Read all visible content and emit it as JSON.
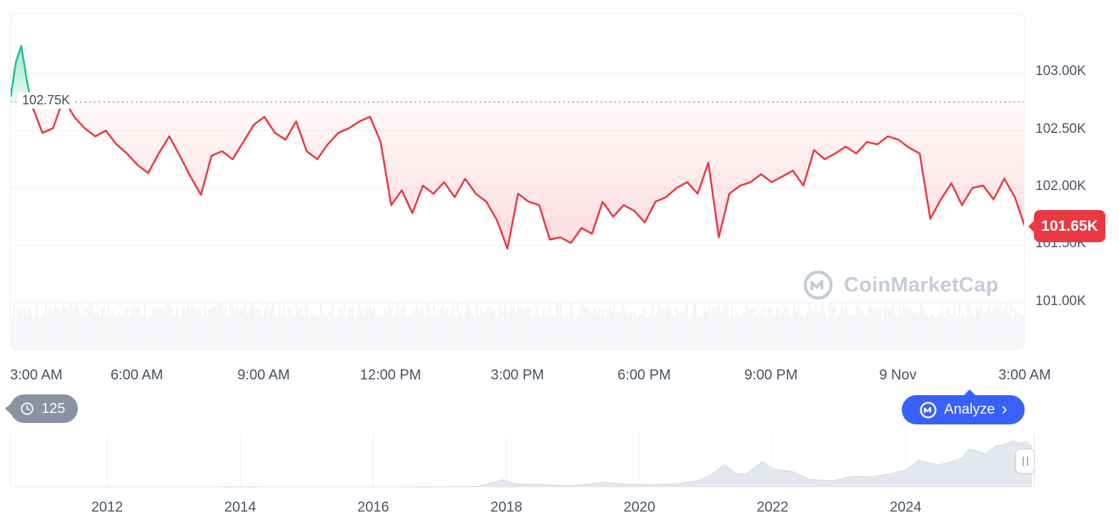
{
  "price_chart": {
    "reference_label": "102.75K",
    "last_price_label": "101.65K",
    "line_color": "#ea3943",
    "pre_open_color": "#16c784",
    "reference_line_color": "#9aa3b4",
    "grid_color": "#f0f2f5",
    "volume_bar_color": "#edeff3",
    "badge_color": "#ea3943"
  },
  "watermark": {
    "text": "CoinMarketCap",
    "color": "#c5ccd8"
  },
  "controls": {
    "history_count": "125",
    "analyze_label": "Analyze",
    "analyze_chevron": "›",
    "analyze_color": "#3861fb",
    "chip_color": "#8893a4"
  },
  "navigator": {
    "handle": "drag-handle"
  },
  "chart_data": [
    {
      "type": "line",
      "title": "",
      "x_tick_labels": [
        "3:00 AM",
        "6:00 AM",
        "9:00 AM",
        "12:00 PM",
        "3:00 PM",
        "6:00 PM",
        "9:00 PM",
        "9 Nov",
        "3:00 AM"
      ],
      "y_tick_labels": [
        "103.00K",
        "102.50K",
        "102.00K",
        "101.50K",
        "101.00K"
      ],
      "y_tick_values": [
        103.0,
        102.5,
        102.0,
        101.5,
        101.0
      ],
      "ylim": [
        100.58,
        103.52
      ],
      "reference_value": 102.75,
      "last_value": 101.65,
      "grid": true,
      "legend": false,
      "series": [
        {
          "name": "price-above-open",
          "color": "#16c784",
          "start_offset_hours": 0,
          "interval_minutes": 7.5,
          "values": [
            102.8,
            103.1,
            103.24,
            102.95,
            102.72
          ]
        },
        {
          "name": "price-below-open",
          "color": "#ea3943",
          "start_offset_hours": 0.5,
          "interval_minutes": 15,
          "values": [
            102.72,
            102.48,
            102.52,
            102.78,
            102.62,
            102.52,
            102.45,
            102.5,
            102.38,
            102.3,
            102.2,
            102.13,
            102.3,
            102.45,
            102.28,
            102.1,
            101.94,
            102.28,
            102.32,
            102.25,
            102.4,
            102.55,
            102.62,
            102.48,
            102.42,
            102.58,
            102.32,
            102.25,
            102.38,
            102.48,
            102.52,
            102.58,
            102.62,
            102.4,
            101.85,
            101.98,
            101.78,
            102.02,
            101.95,
            102.05,
            101.92,
            102.08,
            101.95,
            101.88,
            101.72,
            101.47,
            101.95,
            101.88,
            101.85,
            101.55,
            101.57,
            101.52,
            101.65,
            101.6,
            101.88,
            101.75,
            101.85,
            101.8,
            101.7,
            101.88,
            101.92,
            102.0,
            102.05,
            101.95,
            102.22,
            101.57,
            101.95,
            102.02,
            102.05,
            102.12,
            102.05,
            102.1,
            102.15,
            102.02,
            102.33,
            102.25,
            102.3,
            102.36,
            102.3,
            102.4,
            102.38,
            102.45,
            102.42,
            102.35,
            102.3,
            101.73,
            101.9,
            102.04,
            101.85,
            102.0,
            102.02,
            101.9,
            102.08,
            101.92,
            101.65
          ]
        }
      ]
    },
    {
      "type": "area",
      "name": "history-navigator",
      "x_tick_labels": [
        "2012",
        "2014",
        "2016",
        "2018",
        "2020",
        "2022",
        "2024"
      ],
      "x_tick_values": [
        2012,
        2014,
        2016,
        2018,
        2020,
        2022,
        2024
      ],
      "x_range": [
        2010.54,
        2025.94
      ],
      "ylim": [
        0,
        120
      ],
      "area_color": "#e4e8ee",
      "grid_color": "#eef0f4",
      "points": [
        [
          2010.6,
          0.1
        ],
        [
          2011.4,
          0.2
        ],
        [
          2012.0,
          0.1
        ],
        [
          2012.8,
          0.1
        ],
        [
          2013.4,
          0.1
        ],
        [
          2013.95,
          1.1
        ],
        [
          2014.5,
          0.6
        ],
        [
          2015.2,
          0.25
        ],
        [
          2016.0,
          0.45
        ],
        [
          2016.6,
          0.7
        ],
        [
          2017.2,
          1.2
        ],
        [
          2017.6,
          2.8
        ],
        [
          2017.95,
          19.0
        ],
        [
          2018.15,
          8.5
        ],
        [
          2018.5,
          7.5
        ],
        [
          2018.95,
          3.7
        ],
        [
          2019.5,
          12.5
        ],
        [
          2019.8,
          8.0
        ],
        [
          2020.2,
          6.5
        ],
        [
          2020.6,
          9.5
        ],
        [
          2020.9,
          18.0
        ],
        [
          2021.1,
          34.0
        ],
        [
          2021.28,
          58.0
        ],
        [
          2021.45,
          36.0
        ],
        [
          2021.6,
          33.0
        ],
        [
          2021.85,
          66.0
        ],
        [
          2022.0,
          47.0
        ],
        [
          2022.3,
          40.0
        ],
        [
          2022.55,
          20.0
        ],
        [
          2022.9,
          16.5
        ],
        [
          2023.2,
          28.0
        ],
        [
          2023.5,
          26.5
        ],
        [
          2023.8,
          35.0
        ],
        [
          2024.0,
          44.0
        ],
        [
          2024.2,
          70.0
        ],
        [
          2024.35,
          62.0
        ],
        [
          2024.5,
          57.0
        ],
        [
          2024.7,
          66.0
        ],
        [
          2024.85,
          75.0
        ],
        [
          2024.95,
          97.0
        ],
        [
          2025.05,
          94.0
        ],
        [
          2025.2,
          84.0
        ],
        [
          2025.35,
          105.0
        ],
        [
          2025.5,
          110.0
        ],
        [
          2025.62,
          118.0
        ],
        [
          2025.72,
          112.0
        ],
        [
          2025.82,
          116.0
        ],
        [
          2025.9,
          103.0
        ]
      ]
    }
  ]
}
